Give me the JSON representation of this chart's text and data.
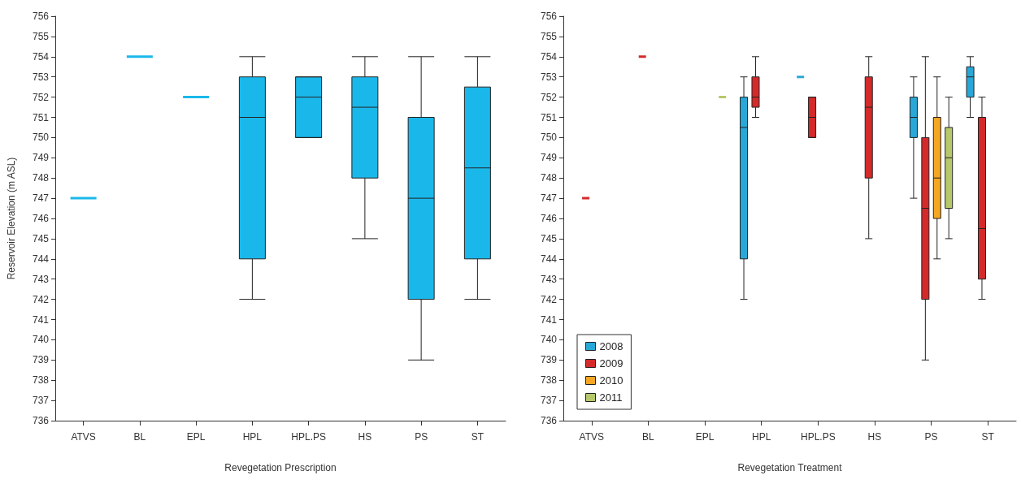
{
  "chart_data": [
    {
      "type": "box",
      "xlabel": "Revegetation Prescription",
      "ylabel": "Reservoir Elevation (m ASL)",
      "categories": [
        "ATVS",
        "BL",
        "EPL",
        "HPL",
        "HPL.PS",
        "HS",
        "PS",
        "ST"
      ],
      "ylim": [
        736,
        756
      ],
      "yticks": [
        736,
        737,
        738,
        739,
        740,
        741,
        742,
        743,
        744,
        745,
        746,
        747,
        748,
        749,
        750,
        751,
        752,
        753,
        754,
        755,
        756
      ],
      "grid": false,
      "legend": false,
      "series": [
        {
          "color": "#1ab8ea",
          "boxes": [
            {
              "low": 747,
              "q1": 747,
              "median": 747,
              "q3": 747,
              "high": 747
            },
            {
              "low": 754,
              "q1": 754,
              "median": 754,
              "q3": 754,
              "high": 754
            },
            {
              "low": 752,
              "q1": 752,
              "median": 752,
              "q3": 752,
              "high": 752
            },
            {
              "low": 742,
              "q1": 744,
              "median": 751,
              "q3": 753,
              "high": 754
            },
            {
              "low": 750,
              "q1": 750,
              "median": 752,
              "q3": 753,
              "high": 753
            },
            {
              "low": 745,
              "q1": 748,
              "median": 751.5,
              "q3": 753,
              "high": 754
            },
            {
              "low": 739,
              "q1": 742,
              "median": 747,
              "q3": 751,
              "high": 754
            },
            {
              "low": 742,
              "q1": 744,
              "median": 748.5,
              "q3": 752.5,
              "high": 754
            }
          ]
        }
      ]
    },
    {
      "type": "box",
      "xlabel": "Revegetation Treatment",
      "categories": [
        "ATVS",
        "BL",
        "EPL",
        "HPL",
        "HPL.PS",
        "HS",
        "PS",
        "ST"
      ],
      "ylim": [
        736,
        756
      ],
      "yticks": [
        736,
        737,
        738,
        739,
        740,
        741,
        742,
        743,
        744,
        745,
        746,
        747,
        748,
        749,
        750,
        751,
        752,
        753,
        754,
        755,
        756
      ],
      "grid": false,
      "legend": "bottom left",
      "series": [
        {
          "name": "2008",
          "color": "#29a8d8",
          "boxes": [
            null,
            null,
            null,
            {
              "low": 742,
              "q1": 744,
              "median": 750.5,
              "q3": 752,
              "high": 753
            },
            {
              "low": 753,
              "q1": 753,
              "median": 753,
              "q3": 753,
              "high": 753
            },
            null,
            {
              "low": 747,
              "q1": 750,
              "median": 751,
              "q3": 752,
              "high": 753
            },
            {
              "low": 751,
              "q1": 752,
              "median": 753,
              "q3": 753.5,
              "high": 754
            }
          ]
        },
        {
          "name": "2009",
          "color": "#d42a2a",
          "boxes": [
            {
              "low": 747,
              "q1": 747,
              "median": 747,
              "q3": 747,
              "high": 747
            },
            {
              "low": 754,
              "q1": 754,
              "median": 754,
              "q3": 754,
              "high": 754
            },
            null,
            {
              "low": 751,
              "q1": 751.5,
              "median": 752,
              "q3": 753,
              "high": 754
            },
            {
              "low": 750,
              "q1": 750,
              "median": 751,
              "q3": 752,
              "high": 752
            },
            {
              "low": 745,
              "q1": 748,
              "median": 751.5,
              "q3": 753,
              "high": 754
            },
            {
              "low": 739,
              "q1": 742,
              "median": 746.5,
              "q3": 750,
              "high": 754
            },
            {
              "low": 742,
              "q1": 743,
              "median": 745.5,
              "q3": 751,
              "high": 752
            }
          ]
        },
        {
          "name": "2010",
          "color": "#f5a623",
          "boxes": [
            null,
            null,
            null,
            null,
            null,
            null,
            {
              "low": 744,
              "q1": 746,
              "median": 748,
              "q3": 751,
              "high": 753
            },
            null
          ]
        },
        {
          "name": "2011",
          "color": "#b5c96a",
          "boxes": [
            null,
            null,
            {
              "low": 752,
              "q1": 752,
              "median": 752,
              "q3": 752,
              "high": 752
            },
            null,
            null,
            null,
            {
              "low": 745,
              "q1": 746.5,
              "median": 749,
              "q3": 750.5,
              "high": 752
            },
            null
          ]
        }
      ]
    }
  ]
}
